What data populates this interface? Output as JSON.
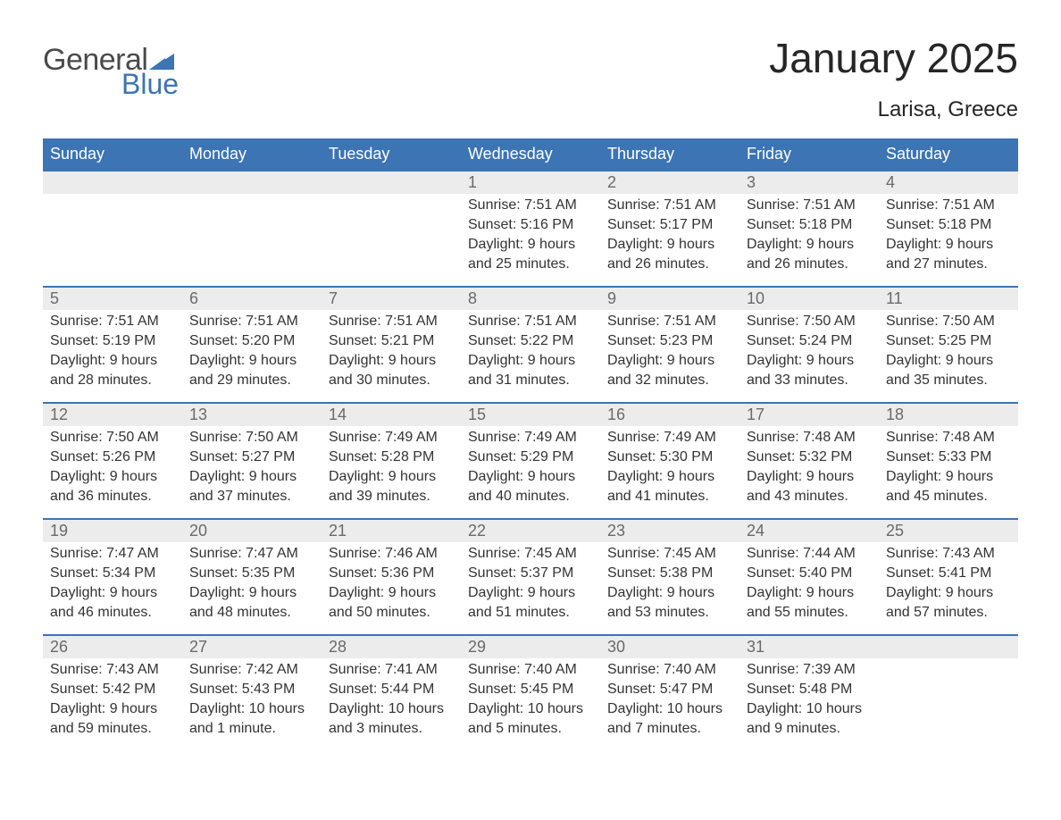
{
  "branding": {
    "word1": "General",
    "word2": "Blue",
    "word1_color": "#4a4a4a",
    "word2_color": "#3c74b4",
    "mark_color": "#3c74b4"
  },
  "header": {
    "title": "January 2025",
    "location": "Larisa, Greece",
    "title_color": "#262626",
    "location_color": "#262626"
  },
  "style": {
    "header_row_bg": "#3c74b4",
    "header_row_text": "#ffffff",
    "week_separator_color": "#3c74b4",
    "daynum_bar_bg": "#ececec",
    "daynum_text_color": "#6a6a6a",
    "body_text_color": "#333333",
    "font_family": "Arial, Helvetica, sans-serif"
  },
  "weekdays": [
    "Sunday",
    "Monday",
    "Tuesday",
    "Wednesday",
    "Thursday",
    "Friday",
    "Saturday"
  ],
  "weeks": [
    [
      null,
      null,
      null,
      {
        "n": "1",
        "sunrise": "7:51 AM",
        "sunset": "5:16 PM",
        "daylight": "9 hours and 25 minutes."
      },
      {
        "n": "2",
        "sunrise": "7:51 AM",
        "sunset": "5:17 PM",
        "daylight": "9 hours and 26 minutes."
      },
      {
        "n": "3",
        "sunrise": "7:51 AM",
        "sunset": "5:18 PM",
        "daylight": "9 hours and 26 minutes."
      },
      {
        "n": "4",
        "sunrise": "7:51 AM",
        "sunset": "5:18 PM",
        "daylight": "9 hours and 27 minutes."
      }
    ],
    [
      {
        "n": "5",
        "sunrise": "7:51 AM",
        "sunset": "5:19 PM",
        "daylight": "9 hours and 28 minutes."
      },
      {
        "n": "6",
        "sunrise": "7:51 AM",
        "sunset": "5:20 PM",
        "daylight": "9 hours and 29 minutes."
      },
      {
        "n": "7",
        "sunrise": "7:51 AM",
        "sunset": "5:21 PM",
        "daylight": "9 hours and 30 minutes."
      },
      {
        "n": "8",
        "sunrise": "7:51 AM",
        "sunset": "5:22 PM",
        "daylight": "9 hours and 31 minutes."
      },
      {
        "n": "9",
        "sunrise": "7:51 AM",
        "sunset": "5:23 PM",
        "daylight": "9 hours and 32 minutes."
      },
      {
        "n": "10",
        "sunrise": "7:50 AM",
        "sunset": "5:24 PM",
        "daylight": "9 hours and 33 minutes."
      },
      {
        "n": "11",
        "sunrise": "7:50 AM",
        "sunset": "5:25 PM",
        "daylight": "9 hours and 35 minutes."
      }
    ],
    [
      {
        "n": "12",
        "sunrise": "7:50 AM",
        "sunset": "5:26 PM",
        "daylight": "9 hours and 36 minutes."
      },
      {
        "n": "13",
        "sunrise": "7:50 AM",
        "sunset": "5:27 PM",
        "daylight": "9 hours and 37 minutes."
      },
      {
        "n": "14",
        "sunrise": "7:49 AM",
        "sunset": "5:28 PM",
        "daylight": "9 hours and 39 minutes."
      },
      {
        "n": "15",
        "sunrise": "7:49 AM",
        "sunset": "5:29 PM",
        "daylight": "9 hours and 40 minutes."
      },
      {
        "n": "16",
        "sunrise": "7:49 AM",
        "sunset": "5:30 PM",
        "daylight": "9 hours and 41 minutes."
      },
      {
        "n": "17",
        "sunrise": "7:48 AM",
        "sunset": "5:32 PM",
        "daylight": "9 hours and 43 minutes."
      },
      {
        "n": "18",
        "sunrise": "7:48 AM",
        "sunset": "5:33 PM",
        "daylight": "9 hours and 45 minutes."
      }
    ],
    [
      {
        "n": "19",
        "sunrise": "7:47 AM",
        "sunset": "5:34 PM",
        "daylight": "9 hours and 46 minutes."
      },
      {
        "n": "20",
        "sunrise": "7:47 AM",
        "sunset": "5:35 PM",
        "daylight": "9 hours and 48 minutes."
      },
      {
        "n": "21",
        "sunrise": "7:46 AM",
        "sunset": "5:36 PM",
        "daylight": "9 hours and 50 minutes."
      },
      {
        "n": "22",
        "sunrise": "7:45 AM",
        "sunset": "5:37 PM",
        "daylight": "9 hours and 51 minutes."
      },
      {
        "n": "23",
        "sunrise": "7:45 AM",
        "sunset": "5:38 PM",
        "daylight": "9 hours and 53 minutes."
      },
      {
        "n": "24",
        "sunrise": "7:44 AM",
        "sunset": "5:40 PM",
        "daylight": "9 hours and 55 minutes."
      },
      {
        "n": "25",
        "sunrise": "7:43 AM",
        "sunset": "5:41 PM",
        "daylight": "9 hours and 57 minutes."
      }
    ],
    [
      {
        "n": "26",
        "sunrise": "7:43 AM",
        "sunset": "5:42 PM",
        "daylight": "9 hours and 59 minutes."
      },
      {
        "n": "27",
        "sunrise": "7:42 AM",
        "sunset": "5:43 PM",
        "daylight": "10 hours and 1 minute."
      },
      {
        "n": "28",
        "sunrise": "7:41 AM",
        "sunset": "5:44 PM",
        "daylight": "10 hours and 3 minutes."
      },
      {
        "n": "29",
        "sunrise": "7:40 AM",
        "sunset": "5:45 PM",
        "daylight": "10 hours and 5 minutes."
      },
      {
        "n": "30",
        "sunrise": "7:40 AM",
        "sunset": "5:47 PM",
        "daylight": "10 hours and 7 minutes."
      },
      {
        "n": "31",
        "sunrise": "7:39 AM",
        "sunset": "5:48 PM",
        "daylight": "10 hours and 9 minutes."
      },
      null
    ]
  ],
  "labels": {
    "sunrise": "Sunrise: ",
    "sunset": "Sunset: ",
    "daylight": "Daylight: "
  }
}
